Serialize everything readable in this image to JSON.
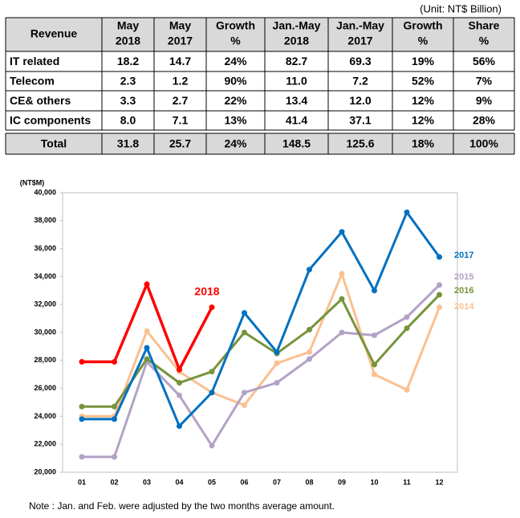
{
  "unit": "(Unit: NT$ Billion)",
  "table": {
    "header": [
      [
        "Revenue"
      ],
      [
        "May",
        "2018"
      ],
      [
        "May",
        "2017"
      ],
      [
        "Growth",
        "%"
      ],
      [
        "Jan.-May",
        "2018"
      ],
      [
        "Jan.-May",
        "2017"
      ],
      [
        "Growth",
        "%"
      ],
      [
        "Share",
        "%"
      ]
    ],
    "rows": [
      [
        "IT related",
        "18.2",
        "14.7",
        "24%",
        "82.7",
        "69.3",
        "19%",
        "56%"
      ],
      [
        "Telecom",
        "2.3",
        "1.2",
        "90%",
        "11.0",
        "7.2",
        "52%",
        "7%"
      ],
      [
        "CE& others",
        "3.3",
        "2.7",
        "22%",
        "13.4",
        "12.0",
        "12%",
        "9%"
      ],
      [
        "IC components",
        "8.0",
        "7.1",
        "13%",
        "41.4",
        "37.1",
        "12%",
        "28%"
      ]
    ],
    "total": [
      "Total",
      "31.8",
      "25.7",
      "24%",
      "148.5",
      "125.6",
      "18%",
      "100%"
    ]
  },
  "chart_data": {
    "type": "line",
    "y_label": "(NT$M)",
    "categories": [
      "01",
      "02",
      "03",
      "04",
      "05",
      "06",
      "07",
      "08",
      "09",
      "10",
      "11",
      "12"
    ],
    "ylim": [
      20000,
      40000
    ],
    "yticks": [
      {
        "value": 20000,
        "label": "20,000"
      },
      {
        "value": 22000,
        "label": "22,000"
      },
      {
        "value": 24000,
        "label": "24,000"
      },
      {
        "value": 26000,
        "label": "26,000"
      },
      {
        "value": 28000,
        "label": "28,000"
      },
      {
        "value": 30000,
        "label": "30,000"
      },
      {
        "value": 32000,
        "label": "32,000"
      },
      {
        "value": 34000,
        "label": "34,000"
      },
      {
        "value": 36000,
        "label": "36,000"
      },
      {
        "value": 38000,
        "label": "38,000"
      },
      {
        "value": 40000,
        "label": "40,000"
      }
    ],
    "grid": false,
    "series": [
      {
        "name": "2014",
        "color": "#fac090",
        "values": [
          24000,
          24000,
          30100,
          27200,
          25700,
          24800,
          27800,
          28600,
          34200,
          27000,
          25900,
          31800
        ]
      },
      {
        "name": "2015",
        "color": "#b3a2c7",
        "values": [
          21100,
          21100,
          27900,
          25500,
          21900,
          25700,
          26400,
          28100,
          30000,
          29800,
          31100,
          33400
        ]
      },
      {
        "name": "2016",
        "color": "#77933c",
        "values": [
          24700,
          24700,
          28100,
          26400,
          27200,
          30000,
          28500,
          30200,
          32400,
          27700,
          30300,
          32700
        ]
      },
      {
        "name": "2017",
        "color": "#0070c0",
        "values": [
          23800,
          23800,
          28900,
          23300,
          25700,
          31400,
          28600,
          34500,
          37200,
          33000,
          38600,
          35400
        ]
      },
      {
        "name": "2018",
        "color": "#ff0000",
        "values": [
          27900,
          27900,
          33450,
          27350,
          31800,
          null,
          null,
          null,
          null,
          null,
          null,
          null
        ]
      }
    ],
    "note": "Note : Jan. and Feb. were  adjusted by the two months average amount."
  }
}
